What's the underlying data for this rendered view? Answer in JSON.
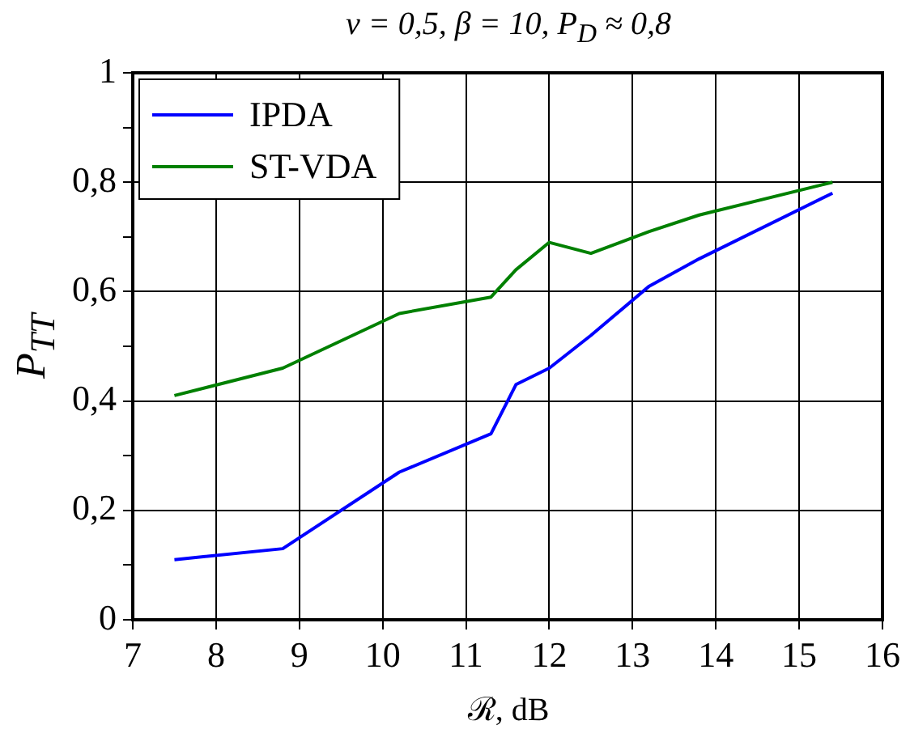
{
  "chart_data": {
    "type": "line",
    "title": "ν = 0,5,  β = 10,  P$_{D}$ ≈ 0,8",
    "xlabel": "ℛ,  dB",
    "ylabel": "P$_{TT}$",
    "series": [
      {
        "name": "IPDA",
        "color": "#0000ff",
        "x": [
          7.5,
          8.8,
          10.2,
          11.3,
          11.6,
          12,
          12.5,
          13.2,
          13.8,
          15.4
        ],
        "values": [
          0.11,
          0.13,
          0.27,
          0.34,
          0.43,
          0.46,
          0.52,
          0.61,
          0.66,
          0.78
        ]
      },
      {
        "name": "ST-VDA",
        "color": "#008000",
        "x": [
          7.5,
          8.8,
          10.2,
          11.3,
          11.6,
          12,
          12.5,
          13.2,
          13.8,
          15.4
        ],
        "values": [
          0.41,
          0.46,
          0.56,
          0.59,
          0.64,
          0.69,
          0.67,
          0.71,
          0.74,
          0.8
        ]
      }
    ],
    "xlim": [
      7,
      16
    ],
    "xticks": [
      7,
      8,
      9,
      10,
      11,
      12,
      13,
      14,
      15,
      16
    ],
    "ylim": [
      0,
      1
    ],
    "yticks": [
      0,
      {
        "value": 0.1,
        "label": null
      },
      {
        "value": 0.2,
        "label": "0,2"
      },
      {
        "value": 0.3,
        "label": null
      },
      {
        "value": 0.4,
        "label": "0,4"
      },
      {
        "value": 0.5,
        "label": null
      },
      {
        "value": 0.6,
        "label": "0,6"
      },
      {
        "value": 0.7,
        "label": null
      },
      {
        "value": 0.8,
        "label": "0,8"
      },
      {
        "value": 0.9,
        "label": null
      },
      1
    ],
    "grid": true,
    "legend": "top left",
    "marker": "none",
    "line_style": "solid"
  }
}
